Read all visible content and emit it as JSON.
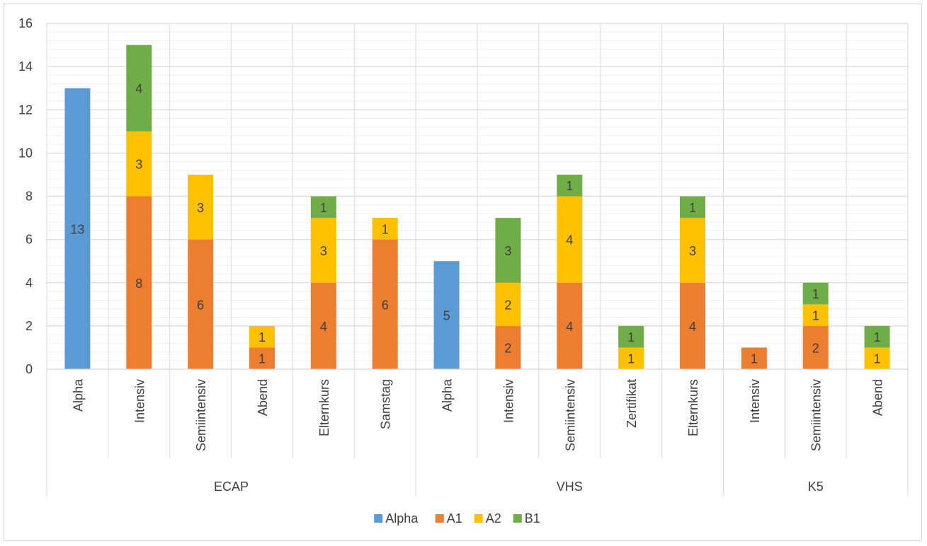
{
  "chart_data": {
    "type": "bar",
    "stacked": true,
    "title": "",
    "xlabel": "",
    "ylabel": "",
    "ylim": [
      0,
      16
    ],
    "yticks": [
      0,
      2,
      4,
      6,
      8,
      10,
      12,
      14,
      16
    ],
    "grid": true,
    "legend_position": "bottom",
    "groups": [
      {
        "name": "ECAP",
        "categories": [
          "Alpha",
          "Intensiv",
          "Semiintensiv",
          "Abend",
          "Elternkurs",
          "Samstag"
        ]
      },
      {
        "name": "VHS",
        "categories": [
          "Alpha",
          "Intensiv",
          "Semiintensiv",
          "Zertifikat",
          "Elternkurs"
        ]
      },
      {
        "name": "K5",
        "categories": [
          "Intensiv",
          "Semiintensiv",
          "Abend"
        ]
      }
    ],
    "series": [
      {
        "name": "Alpha",
        "color": "#5b9bd5",
        "values": [
          13,
          0,
          0,
          0,
          0,
          0,
          5,
          0,
          0,
          0,
          0,
          0,
          0,
          0
        ]
      },
      {
        "name": "A1",
        "color": "#ed7d31",
        "values": [
          0,
          8,
          6,
          1,
          4,
          6,
          0,
          2,
          4,
          0,
          4,
          1,
          2,
          0
        ]
      },
      {
        "name": "A2",
        "color": "#ffc000",
        "values": [
          0,
          3,
          3,
          1,
          3,
          1,
          0,
          2,
          4,
          1,
          3,
          0,
          1,
          1
        ]
      },
      {
        "name": "B1",
        "color": "#70ad47",
        "values": [
          0,
          4,
          0,
          0,
          1,
          0,
          0,
          3,
          1,
          1,
          1,
          0,
          1,
          1
        ]
      }
    ],
    "data_labels": [
      [
        13,
        null,
        null,
        null,
        null,
        null,
        5,
        null,
        null,
        null,
        null,
        null,
        null,
        null
      ],
      [
        null,
        8,
        6,
        1,
        4,
        6,
        null,
        2,
        4,
        null,
        4,
        1,
        2,
        null
      ],
      [
        null,
        3,
        3,
        1,
        3,
        1,
        null,
        2,
        4,
        1,
        3,
        null,
        1,
        1
      ],
      [
        null,
        4,
        null,
        null,
        1,
        null,
        null,
        3,
        1,
        1,
        1,
        null,
        1,
        1
      ]
    ]
  }
}
